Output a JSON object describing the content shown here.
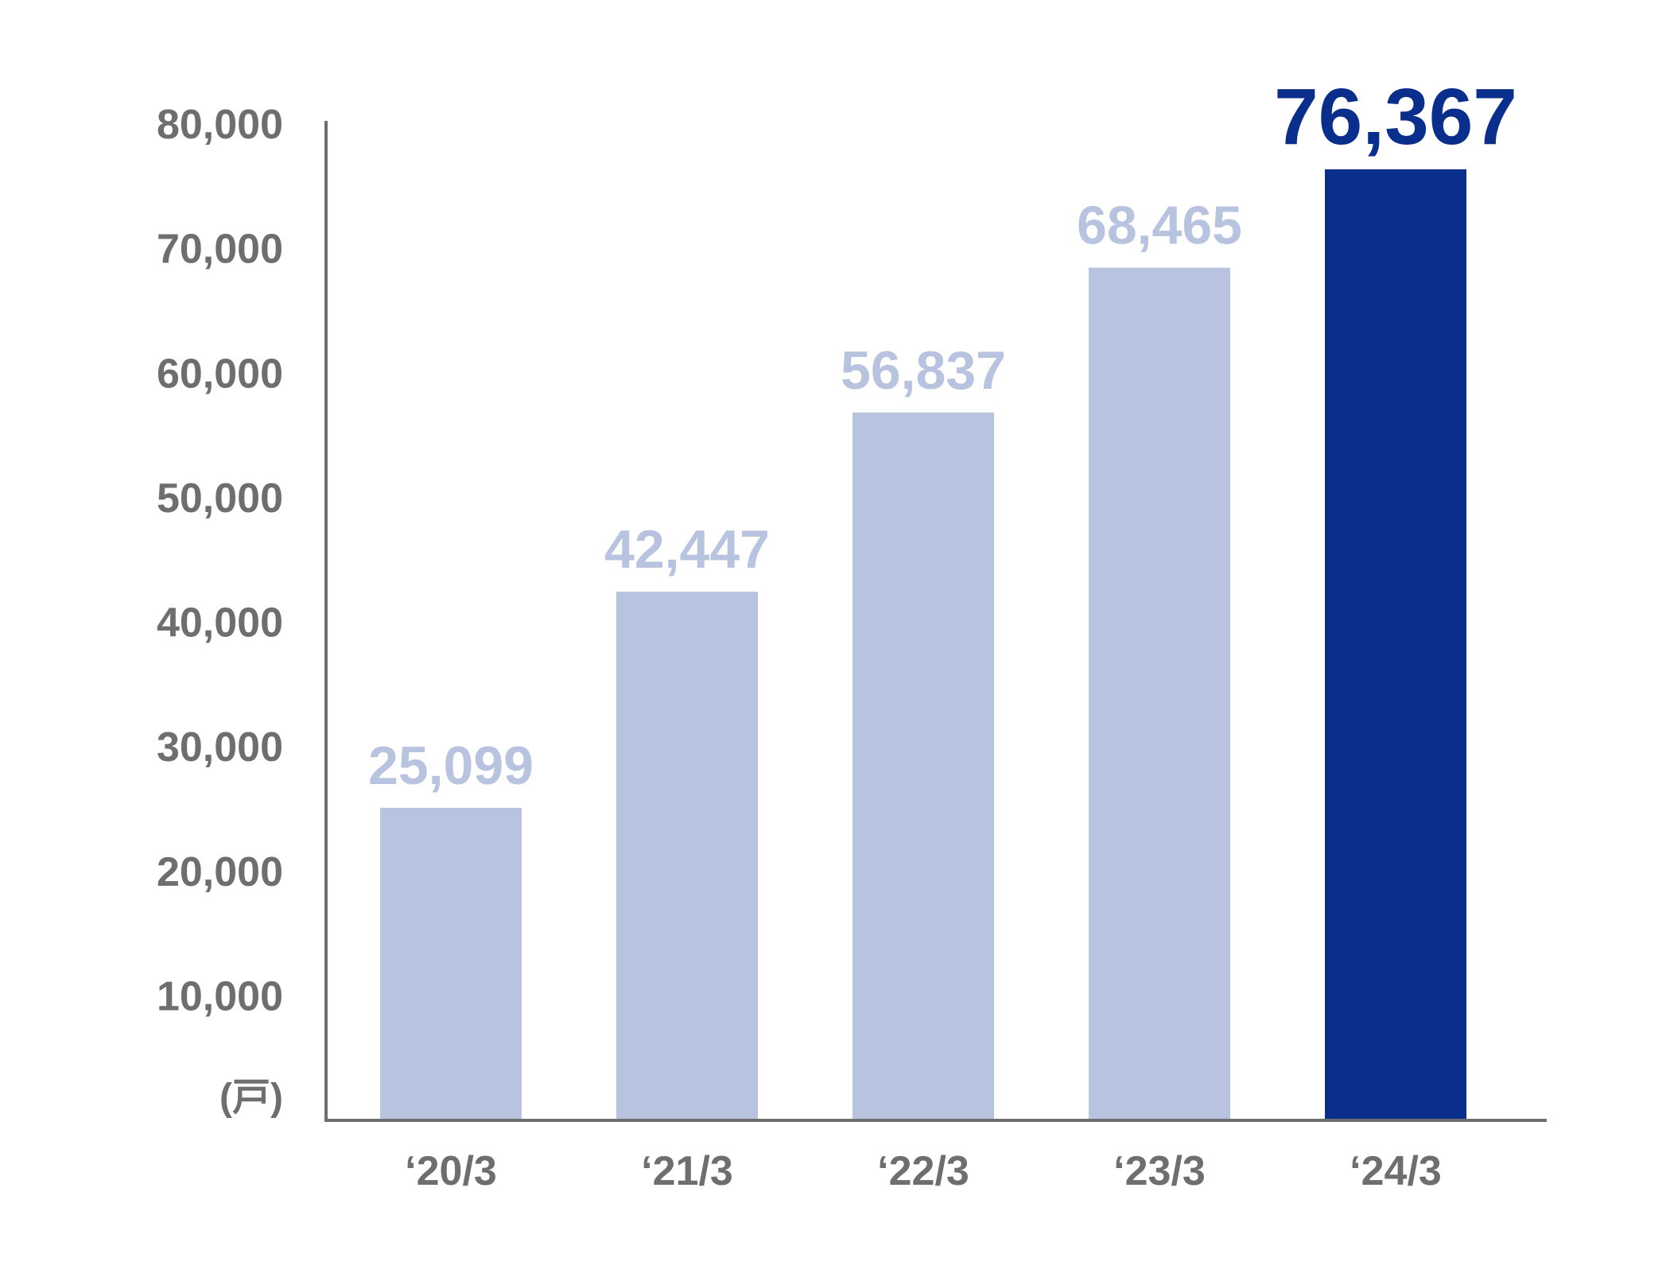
{
  "chart_data": {
    "type": "bar",
    "categories": [
      "‘20/3",
      "‘21/3",
      "‘22/3",
      "‘23/3",
      "‘24/3"
    ],
    "values": [
      25099,
      42447,
      56837,
      68465,
      76367
    ],
    "value_labels": [
      "25,099",
      "42,447",
      "56,837",
      "68,465",
      "76,367"
    ],
    "highlight_index": 4,
    "ylim": [
      0,
      80000
    ],
    "yticks": [
      10000,
      20000,
      30000,
      40000,
      50000,
      60000,
      70000,
      80000
    ],
    "ytick_labels": [
      "10,000",
      "20,000",
      "30,000",
      "40,000",
      "50,000",
      "60,000",
      "70,000",
      "80,000"
    ],
    "unit_label": "(戸)",
    "title": "",
    "xlabel": "",
    "ylabel": "",
    "grid": false,
    "legend": "none",
    "colors": {
      "bar": "#b8c4df",
      "bar_highlight": "#0a2e8c",
      "label": "#b8c4df",
      "label_highlight": "#0a2e8c",
      "axis": "#6e6e6e",
      "text": "#6e6e6e"
    }
  }
}
